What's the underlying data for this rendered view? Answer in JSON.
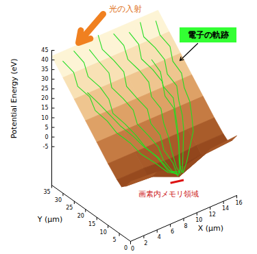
{
  "chart_data": {
    "type": "surface3d",
    "xlabel": "X (μm)",
    "ylabel": "Y (μm)",
    "zlabel": "Potential Energy (eV)",
    "xlim": [
      0,
      16
    ],
    "xticks": [
      0,
      2,
      4,
      6,
      8,
      10,
      12,
      14,
      16
    ],
    "ylim": [
      0,
      35
    ],
    "yticks": [
      0,
      5,
      10,
      15,
      20,
      25,
      30,
      35
    ],
    "zlim": [
      -25,
      45
    ],
    "zticks": [
      -5,
      0,
      5,
      10,
      15,
      20,
      25,
      30,
      35,
      40,
      45
    ],
    "annotations": {
      "light": "光の入射",
      "trajectories": "電子の軌跡",
      "memory_region": "画素内メモリ領域"
    },
    "surface": {
      "x": [
        0,
        4,
        8,
        12,
        16
      ],
      "y": [
        0,
        2,
        4,
        6,
        10,
        15,
        20,
        25,
        30,
        35
      ],
      "z": [
        [
          6,
          5,
          2,
          5,
          6
        ],
        [
          2,
          1,
          -5,
          1,
          2
        ],
        [
          0,
          -1,
          -3,
          -1,
          0
        ],
        [
          2,
          2,
          1,
          2,
          2
        ],
        [
          7,
          7,
          7,
          7,
          7
        ],
        [
          14,
          14,
          14,
          14,
          14
        ],
        [
          21,
          21,
          21,
          21,
          21
        ],
        [
          28,
          28,
          28,
          28,
          28
        ],
        [
          35,
          35,
          35,
          35,
          35
        ],
        [
          42,
          42,
          42,
          42,
          42
        ]
      ]
    },
    "trajectories": [
      [
        [
          1,
          33
        ],
        [
          1.6,
          30
        ],
        [
          1.2,
          27
        ],
        [
          2,
          24
        ],
        [
          1.8,
          21
        ],
        [
          2.6,
          18
        ],
        [
          3,
          15
        ],
        [
          4,
          12
        ],
        [
          4.6,
          9
        ],
        [
          5.8,
          6
        ],
        [
          6.8,
          3.5
        ],
        [
          7.5,
          1.5
        ]
      ],
      [
        [
          3,
          34
        ],
        [
          3.5,
          31
        ],
        [
          3.1,
          28
        ],
        [
          3.9,
          25
        ],
        [
          4.2,
          22
        ],
        [
          3.8,
          19
        ],
        [
          4.6,
          16
        ],
        [
          5.2,
          13
        ],
        [
          5.6,
          10
        ],
        [
          6.4,
          7
        ],
        [
          7,
          4
        ],
        [
          7.6,
          1.5
        ]
      ],
      [
        [
          5,
          33
        ],
        [
          5.4,
          30
        ],
        [
          5.9,
          27
        ],
        [
          5.3,
          24
        ],
        [
          6,
          21
        ],
        [
          6.5,
          18
        ],
        [
          6.1,
          15
        ],
        [
          6.7,
          12
        ],
        [
          7.2,
          9
        ],
        [
          7,
          6
        ],
        [
          7.5,
          3.5
        ],
        [
          7.8,
          1.2
        ]
      ],
      [
        [
          7,
          35
        ],
        [
          6.6,
          32
        ],
        [
          7.3,
          29
        ],
        [
          7.8,
          26
        ],
        [
          7.2,
          23
        ],
        [
          7.7,
          20
        ],
        [
          8.3,
          17
        ],
        [
          7.8,
          14
        ],
        [
          8.2,
          11
        ],
        [
          7.7,
          8
        ],
        [
          8.1,
          5
        ],
        [
          7.8,
          2
        ],
        [
          7.6,
          0
        ]
      ],
      [
        [
          9,
          34
        ],
        [
          9.5,
          31
        ],
        [
          9.1,
          28
        ],
        [
          9.8,
          25
        ],
        [
          10.2,
          22
        ],
        [
          9.6,
          19
        ],
        [
          10,
          16
        ],
        [
          9.4,
          13
        ],
        [
          9.1,
          10
        ],
        [
          8.6,
          7
        ],
        [
          8.3,
          4
        ],
        [
          8,
          1.5
        ]
      ],
      [
        [
          11,
          33
        ],
        [
          11.4,
          30
        ],
        [
          10.8,
          27
        ],
        [
          11.5,
          24
        ],
        [
          11.9,
          21
        ],
        [
          11.3,
          18
        ],
        [
          11.6,
          15
        ],
        [
          10.9,
          12
        ],
        [
          10.2,
          9
        ],
        [
          9.4,
          6
        ],
        [
          8.7,
          3.5
        ],
        [
          8.2,
          1.5
        ]
      ],
      [
        [
          13,
          34
        ],
        [
          12.5,
          31
        ],
        [
          13.2,
          28
        ],
        [
          13.6,
          25
        ],
        [
          13,
          22
        ],
        [
          13.4,
          19
        ],
        [
          12.7,
          16
        ],
        [
          12.2,
          13
        ],
        [
          11.4,
          10
        ],
        [
          10.3,
          7
        ],
        [
          9.2,
          4
        ],
        [
          8.4,
          1.8
        ]
      ],
      [
        [
          15,
          33
        ],
        [
          14.6,
          30
        ],
        [
          15.1,
          27
        ],
        [
          14.5,
          24
        ],
        [
          14.8,
          21
        ],
        [
          14.2,
          18
        ],
        [
          14,
          15
        ],
        [
          13.3,
          12
        ],
        [
          12.5,
          9
        ],
        [
          11.2,
          6.5
        ],
        [
          9.8,
          4
        ],
        [
          8.6,
          2
        ]
      ],
      [
        [
          2,
          25
        ],
        [
          2.7,
          22
        ],
        [
          3.3,
          19
        ],
        [
          3.9,
          16
        ],
        [
          4.8,
          13
        ],
        [
          5.5,
          10
        ],
        [
          6.5,
          7
        ],
        [
          7.2,
          4
        ],
        [
          7.7,
          1.8
        ]
      ],
      [
        [
          12,
          26
        ],
        [
          12.3,
          23
        ],
        [
          11.7,
          20
        ],
        [
          12.2,
          17
        ],
        [
          11.5,
          14
        ],
        [
          10.8,
          11
        ],
        [
          10,
          8
        ],
        [
          9,
          5
        ],
        [
          8.2,
          2.2
        ]
      ]
    ],
    "memory_region": {
      "x": [
        6,
        8
      ],
      "y": 0
    }
  }
}
